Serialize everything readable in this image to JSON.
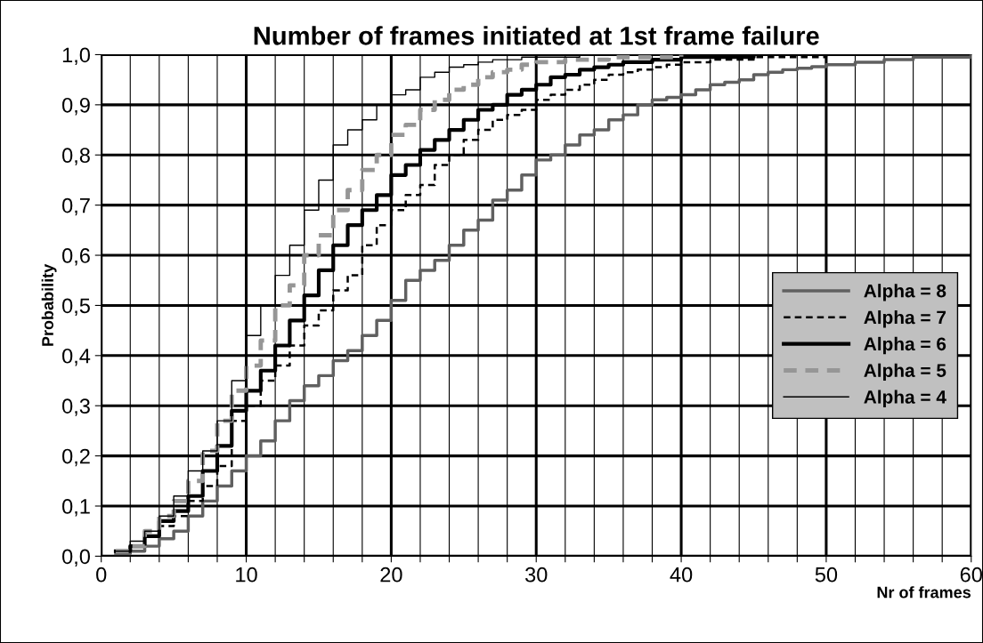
{
  "chart_data": {
    "type": "step",
    "title": "Number of frames initiated at 1st frame failure",
    "xlabel": "Nr of frames",
    "ylabel": "Probability",
    "xlim": [
      0,
      60
    ],
    "ylim": [
      0,
      1
    ],
    "xticks": [
      0,
      {
        "value": 2,
        "label": null
      },
      {
        "value": 4,
        "label": null
      },
      {
        "value": 6,
        "label": null
      },
      {
        "value": 8,
        "label": null
      },
      10,
      {
        "value": 12,
        "label": null
      },
      {
        "value": 14,
        "label": null
      },
      {
        "value": 16,
        "label": null
      },
      {
        "value": 18,
        "label": null
      },
      20,
      {
        "value": 22,
        "label": null
      },
      {
        "value": 24,
        "label": null
      },
      {
        "value": 26,
        "label": null
      },
      {
        "value": 28,
        "label": null
      },
      30,
      {
        "value": 32,
        "label": null
      },
      {
        "value": 34,
        "label": null
      },
      {
        "value": 36,
        "label": null
      },
      {
        "value": 38,
        "label": null
      },
      40,
      {
        "value": 42,
        "label": null
      },
      {
        "value": 44,
        "label": null
      },
      {
        "value": 46,
        "label": null
      },
      {
        "value": 48,
        "label": null
      },
      50,
      {
        "value": 52,
        "label": null
      },
      {
        "value": 54,
        "label": null
      },
      {
        "value": 56,
        "label": null
      },
      {
        "value": 58,
        "label": null
      },
      60
    ],
    "yticks": [
      {
        "value": 0,
        "label": "0,0"
      },
      {
        "value": 0.1,
        "label": "0,1"
      },
      {
        "value": 0.2,
        "label": "0,2"
      },
      {
        "value": 0.3,
        "label": "0,3"
      },
      {
        "value": 0.4,
        "label": "0,4"
      },
      {
        "value": 0.5,
        "label": "0,5"
      },
      {
        "value": 0.6,
        "label": "0,6"
      },
      {
        "value": 0.7,
        "label": "0,7"
      },
      {
        "value": 0.8,
        "label": "0,8"
      },
      {
        "value": 0.9,
        "label": "0,9"
      },
      {
        "value": 1,
        "label": "1,0"
      }
    ],
    "grid": true,
    "legend": "right",
    "marker": "none",
    "series": [
      {
        "name": "Alpha = 8",
        "color": "#606060",
        "line_style": "solid",
        "x": [
          1,
          2,
          3,
          4,
          5,
          6,
          7,
          8,
          9,
          10,
          11,
          12,
          13,
          14,
          15,
          16,
          17,
          18,
          19,
          20,
          21,
          22,
          23,
          24,
          25,
          26,
          27,
          28,
          29,
          30,
          31,
          32,
          33,
          34,
          35,
          36,
          37,
          38,
          39,
          40,
          41,
          42,
          43,
          44,
          45,
          46,
          47,
          48,
          49,
          50,
          52,
          54,
          56,
          60
        ],
        "values": [
          0.005,
          0.01,
          0.02,
          0.035,
          0.05,
          0.08,
          0.11,
          0.14,
          0.17,
          0.2,
          0.23,
          0.27,
          0.31,
          0.34,
          0.36,
          0.39,
          0.41,
          0.44,
          0.47,
          0.51,
          0.55,
          0.57,
          0.59,
          0.62,
          0.65,
          0.67,
          0.71,
          0.73,
          0.76,
          0.79,
          0.8,
          0.82,
          0.84,
          0.85,
          0.87,
          0.88,
          0.9,
          0.91,
          0.915,
          0.92,
          0.93,
          0.94,
          0.945,
          0.95,
          0.96,
          0.965,
          0.97,
          0.973,
          0.976,
          0.98,
          0.985,
          0.99,
          0.995,
          1.0
        ]
      },
      {
        "name": "Alpha = 7",
        "color": "#000000",
        "line_style": "dashed",
        "x": [
          1,
          2,
          3,
          4,
          5,
          6,
          7,
          8,
          9,
          10,
          11,
          12,
          13,
          14,
          15,
          16,
          17,
          18,
          19,
          20,
          21,
          22,
          23,
          24,
          25,
          26,
          27,
          28,
          29,
          30,
          31,
          32,
          33,
          34,
          35,
          36,
          37,
          38,
          39,
          40,
          42,
          45,
          50
        ],
        "values": [
          0.01,
          0.02,
          0.04,
          0.06,
          0.08,
          0.11,
          0.14,
          0.18,
          0.27,
          0.3,
          0.35,
          0.38,
          0.42,
          0.46,
          0.49,
          0.53,
          0.56,
          0.62,
          0.66,
          0.69,
          0.72,
          0.74,
          0.78,
          0.8,
          0.83,
          0.85,
          0.87,
          0.88,
          0.89,
          0.91,
          0.92,
          0.93,
          0.94,
          0.95,
          0.96,
          0.965,
          0.97,
          0.975,
          0.98,
          0.985,
          0.99,
          0.995,
          1.0
        ]
      },
      {
        "name": "Alpha = 6",
        "color": "#000000",
        "line_style": "solid",
        "x": [
          1,
          2,
          3,
          4,
          5,
          6,
          7,
          8,
          9,
          10,
          11,
          12,
          13,
          14,
          15,
          16,
          17,
          18,
          19,
          20,
          21,
          22,
          23,
          24,
          25,
          26,
          27,
          28,
          29,
          30,
          31,
          32,
          33,
          34,
          35,
          36,
          38,
          40,
          45
        ],
        "values": [
          0.01,
          0.02,
          0.04,
          0.07,
          0.09,
          0.12,
          0.17,
          0.22,
          0.29,
          0.33,
          0.37,
          0.42,
          0.47,
          0.52,
          0.57,
          0.62,
          0.66,
          0.69,
          0.72,
          0.76,
          0.78,
          0.81,
          0.83,
          0.85,
          0.87,
          0.89,
          0.9,
          0.92,
          0.93,
          0.94,
          0.955,
          0.96,
          0.97,
          0.975,
          0.98,
          0.985,
          0.99,
          0.995,
          1.0
        ]
      },
      {
        "name": "Alpha = 5",
        "color": "#969696",
        "line_style": "dashed",
        "x": [
          1,
          2,
          3,
          4,
          5,
          6,
          7,
          8,
          9,
          10,
          11,
          12,
          13,
          14,
          15,
          16,
          17,
          18,
          19,
          20,
          21,
          22,
          23,
          24,
          25,
          26,
          27,
          28,
          29,
          30,
          32,
          35,
          40
        ],
        "values": [
          0.01,
          0.02,
          0.05,
          0.08,
          0.11,
          0.15,
          0.21,
          0.27,
          0.33,
          0.38,
          0.43,
          0.5,
          0.54,
          0.6,
          0.64,
          0.69,
          0.73,
          0.77,
          0.8,
          0.84,
          0.86,
          0.89,
          0.91,
          0.93,
          0.94,
          0.955,
          0.965,
          0.97,
          0.98,
          0.985,
          0.99,
          0.995,
          1.0
        ]
      },
      {
        "name": "Alpha = 4",
        "color": "#000000",
        "line_style": "solid",
        "x": [
          1,
          2,
          3,
          4,
          5,
          6,
          7,
          8,
          9,
          10,
          11,
          12,
          13,
          14,
          15,
          16,
          17,
          18,
          19,
          20,
          21,
          22,
          23,
          24,
          25,
          26,
          27,
          29,
          33
        ],
        "values": [
          0.01,
          0.03,
          0.05,
          0.08,
          0.12,
          0.17,
          0.21,
          0.27,
          0.35,
          0.44,
          0.5,
          0.56,
          0.62,
          0.69,
          0.75,
          0.82,
          0.85,
          0.87,
          0.9,
          0.92,
          0.93,
          0.955,
          0.965,
          0.975,
          0.98,
          0.985,
          0.99,
          0.995,
          1.0
        ]
      }
    ]
  }
}
